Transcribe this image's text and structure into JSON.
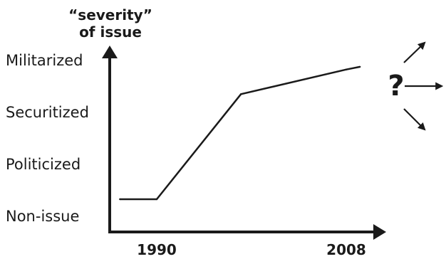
{
  "diagram": {
    "y_axis_title": [
      "“severity”",
      "of issue"
    ],
    "levels": [
      "Militarized",
      "Securitized",
      "Politicized",
      "Non-issue"
    ],
    "x_ticks": [
      "1990",
      "2008"
    ],
    "uncertainty_mark": "?",
    "future_outcomes": [
      "increase",
      "stable",
      "decrease"
    ]
  },
  "chart_data": {
    "type": "line",
    "title": "",
    "ylabel": "“severity” of issue",
    "xlabel": "",
    "y_categories": [
      "Non-issue",
      "Politicized",
      "Securitized",
      "Militarized"
    ],
    "x_tick_labels": [
      "1990",
      "2008"
    ],
    "series": [
      {
        "values": [
          {
            "x": 1986.5,
            "y": 0.0
          },
          {
            "x": 1990.0,
            "y": 0.0
          },
          {
            "x": 1998.0,
            "y": 1.58
          },
          {
            "x": 2008.0,
            "y": 1.95
          },
          {
            "x": 2009.3,
            "y": 1.99
          }
        ]
      }
    ],
    "grid": false
  }
}
